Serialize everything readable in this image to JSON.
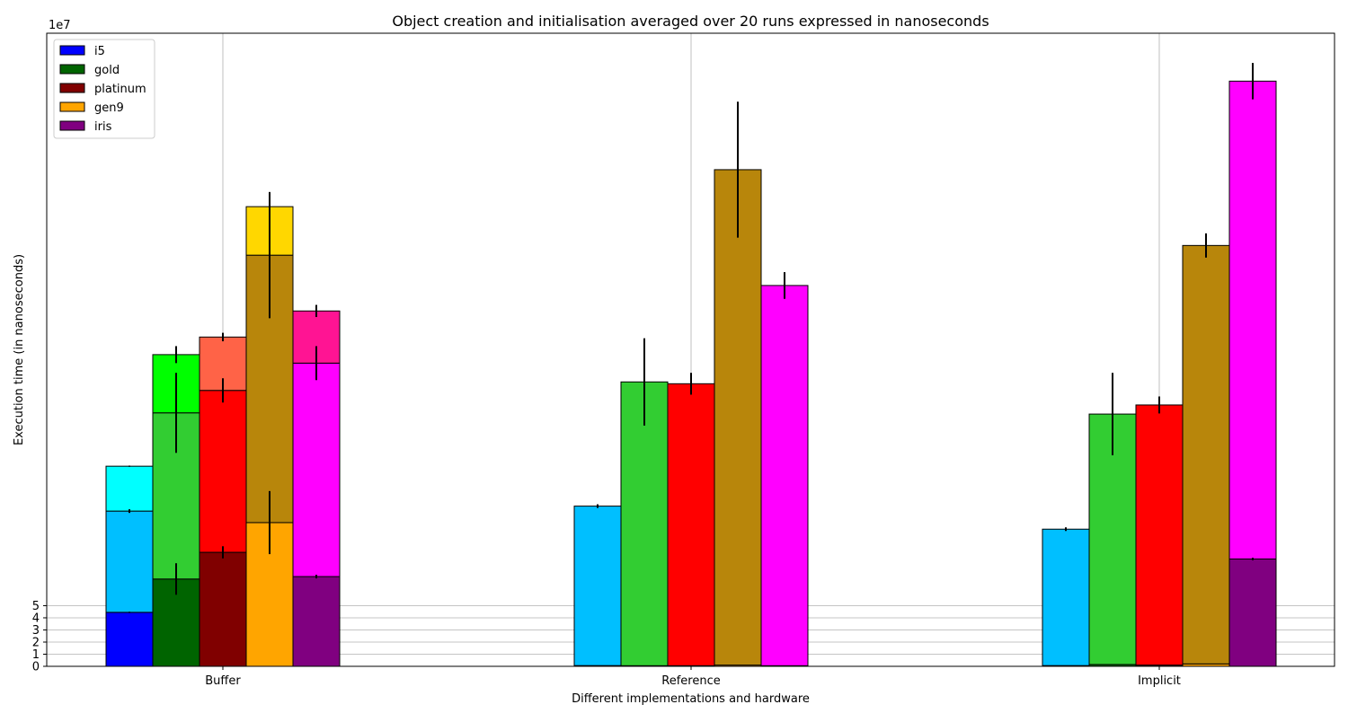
{
  "chart_data": {
    "type": "bar",
    "stacked": true,
    "title": "Object creation and initialisation averaged over 20 runs expressed in nanoseconds",
    "xlabel": "Different implementations and hardware",
    "ylabel": "Execution time (in nanoseconds)",
    "y_scale_label": "1e7",
    "y_scale": 10000000,
    "ylim": [
      0,
      52.2
    ],
    "yticks": [
      0,
      1,
      2,
      3,
      4,
      5
    ],
    "ytick_labels": [
      "0",
      "1",
      "2",
      "3",
      "4",
      "5"
    ],
    "grid": true,
    "legend_position": "top-left",
    "categories": [
      "Buffer",
      "Reference",
      "Implicit"
    ],
    "series_names": [
      "i5",
      "gold",
      "platinum",
      "gen9",
      "iris"
    ],
    "legend": [
      {
        "label": "i5",
        "color": "#0000ff"
      },
      {
        "label": "gold",
        "color": "#006400"
      },
      {
        "label": "platinum",
        "color": "#800000"
      },
      {
        "label": "gen9",
        "color": "#ffa500"
      },
      {
        "label": "iris",
        "color": "#800080"
      }
    ],
    "units_note": "values in units of 1e7 ns",
    "stacks": [
      {
        "category": "Buffer",
        "series": "i5",
        "segments": [
          {
            "value": 4.45,
            "color": "#0000ff",
            "err": 0.05
          },
          {
            "value": 8.35,
            "color": "#00bfff",
            "err": 0.15
          },
          {
            "value": 3.7,
            "color": "#00ffff",
            "err": 0.05
          }
        ]
      },
      {
        "category": "Buffer",
        "series": "gold",
        "segments": [
          {
            "value": 7.2,
            "color": "#006400",
            "err": 1.3
          },
          {
            "value": 13.7,
            "color": "#32cd32",
            "err": 3.3
          },
          {
            "value": 4.8,
            "color": "#00ff00",
            "err": 0.7
          }
        ]
      },
      {
        "category": "Buffer",
        "series": "platinum",
        "segments": [
          {
            "value": 9.4,
            "color": "#800000",
            "err": 0.5
          },
          {
            "value": 13.35,
            "color": "#ff0000",
            "err": 1.0
          },
          {
            "value": 4.4,
            "color": "#ff6347",
            "err": 0.35
          }
        ]
      },
      {
        "category": "Buffer",
        "series": "gen9",
        "segments": [
          {
            "value": 11.85,
            "color": "#ffa500",
            "err": 2.6
          },
          {
            "value": 22.05,
            "color": "#b8860b",
            "err": 5.2
          },
          {
            "value": 4.0,
            "color": "#ffd700",
            "err": 1.2
          }
        ]
      },
      {
        "category": "Buffer",
        "series": "iris",
        "segments": [
          {
            "value": 7.4,
            "color": "#800080",
            "err": 0.15
          },
          {
            "value": 17.6,
            "color": "#ff00ff",
            "err": 1.4
          },
          {
            "value": 4.3,
            "color": "#ff1493",
            "err": 0.5
          }
        ]
      },
      {
        "category": "Reference",
        "series": "i5",
        "segments": [
          {
            "value": 0.06,
            "color": "#0000ff",
            "err": 0
          },
          {
            "value": 13.15,
            "color": "#00bfff",
            "err": 0.15
          }
        ]
      },
      {
        "category": "Reference",
        "series": "gold",
        "segments": [
          {
            "value": 0.05,
            "color": "#006400",
            "err": 0
          },
          {
            "value": 23.4,
            "color": "#32cd32",
            "err": 3.6
          }
        ]
      },
      {
        "category": "Reference",
        "series": "platinum",
        "segments": [
          {
            "value": 0.05,
            "color": "#800000",
            "err": 0
          },
          {
            "value": 23.25,
            "color": "#ff0000",
            "err": 0.9
          }
        ]
      },
      {
        "category": "Reference",
        "series": "gen9",
        "segments": [
          {
            "value": 0.1,
            "color": "#ffa500",
            "err": 0
          },
          {
            "value": 40.85,
            "color": "#b8860b",
            "err": 5.6
          }
        ]
      },
      {
        "category": "Reference",
        "series": "iris",
        "segments": [
          {
            "value": 0.05,
            "color": "#800080",
            "err": 0
          },
          {
            "value": 31.35,
            "color": "#ff00ff",
            "err": 1.1
          }
        ]
      },
      {
        "category": "Implicit",
        "series": "i5",
        "segments": [
          {
            "value": 0.06,
            "color": "#0000ff",
            "err": 0
          },
          {
            "value": 11.25,
            "color": "#00bfff",
            "err": 0.15
          }
        ]
      },
      {
        "category": "Implicit",
        "series": "gold",
        "segments": [
          {
            "value": 0.15,
            "color": "#006400",
            "err": 0
          },
          {
            "value": 20.65,
            "color": "#32cd32",
            "err": 3.4
          }
        ]
      },
      {
        "category": "Implicit",
        "series": "platinum",
        "segments": [
          {
            "value": 0.1,
            "color": "#800000",
            "err": 0
          },
          {
            "value": 21.45,
            "color": "#ff0000",
            "err": 0.7
          }
        ]
      },
      {
        "category": "Implicit",
        "series": "gen9",
        "segments": [
          {
            "value": 0.2,
            "color": "#ffa500",
            "err": 0
          },
          {
            "value": 34.5,
            "color": "#b8860b",
            "err": 1.0
          }
        ]
      },
      {
        "category": "Implicit",
        "series": "iris",
        "segments": [
          {
            "value": 8.85,
            "color": "#800080",
            "err": 0.1
          },
          {
            "value": 39.4,
            "color": "#ff00ff",
            "err": 1.5
          }
        ]
      }
    ]
  }
}
